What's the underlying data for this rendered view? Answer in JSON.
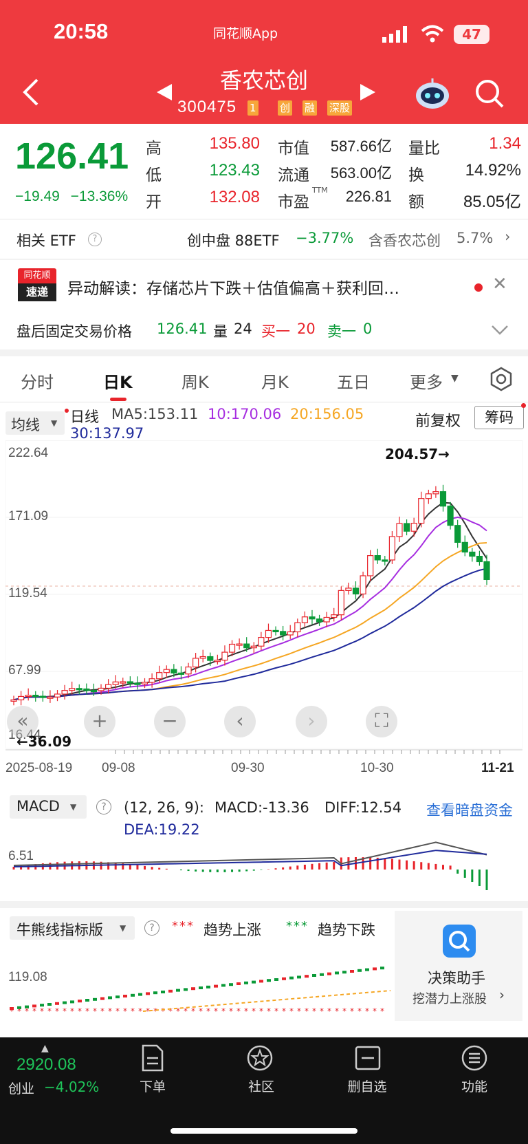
{
  "status_bar": {
    "time": "20:58",
    "app_name": "同花顺App",
    "battery": "47"
  },
  "header": {
    "stock_name": "香农芯创",
    "stock_code": "300475",
    "code_suffix": "1",
    "tags": [
      "创",
      "融",
      "深股"
    ]
  },
  "quote": {
    "last_price": "126.41",
    "change": "−19.49",
    "change_pct": "−13.36%",
    "rows": [
      {
        "l1": "高",
        "v1": "135.80",
        "l2": "市值",
        "v2": "587.66亿",
        "l3": "量比",
        "v3": "1.34"
      },
      {
        "l1": "低",
        "v1": "123.43",
        "l2": "流通",
        "v2": "563.00亿",
        "l3": "换",
        "v3": "14.92%"
      },
      {
        "l1": "开",
        "v1": "132.08",
        "l2": "市盈",
        "v2": "226.81",
        "l3": "额",
        "v3": "85.05亿"
      }
    ],
    "pe_sup": "TTM"
  },
  "etf": {
    "label": "相关 ETF",
    "name": "创中盘 88ETF",
    "pct": "−3.77%",
    "holding": "含香农芯创",
    "holding_pct": "5.7%"
  },
  "news": {
    "badge_top": "同花顺",
    "badge_bottom": "速递",
    "text": "异动解读：存储芯片下跌＋估值偏高＋获利回…"
  },
  "after_hours": {
    "label": "盘后固定交易价格",
    "price": "126.41",
    "vol_label": "量",
    "vol": "24",
    "buy_label": "买一",
    "buy": "20",
    "sell_label": "卖一",
    "sell": "0"
  },
  "tabs": [
    "分时",
    "日K",
    "周K",
    "月K",
    "五日",
    "更多"
  ],
  "kline": {
    "ma_selector": "均线",
    "line_type": "日线",
    "ma5": "MA5:153.11",
    "ma10": "10:170.06",
    "ma20": "20:156.05",
    "ma30": "30:137.97",
    "adjust": "前复权",
    "chips": "筹码",
    "y_labels": [
      "222.64",
      "171.09",
      "119.54",
      "67.99",
      "16.44"
    ],
    "high_marker": "204.57→",
    "low_marker": "←36.09",
    "x_labels": [
      "2025-08-19",
      "09-08",
      "09-30",
      "10-30",
      "11-21"
    ],
    "colors": {
      "up": "#e8242b",
      "down": "#0a9a38",
      "ma5": "#333333",
      "ma10": "#a62de0",
      "ma20": "#f5a623",
      "ma30": "#1f2a9b"
    }
  },
  "macd": {
    "selector": "MACD",
    "params": "(12, 26, 9):",
    "macd": "MACD:-13.36",
    "diff": "DIFF:12.54",
    "dea": "DEA:19.22",
    "link": "查看暗盘资金",
    "y_label": "6.51"
  },
  "bull_bear": {
    "selector": "牛熊线指标版",
    "up_label": "趋势上涨",
    "down_label": "趋势下跌",
    "y_label": "119.08",
    "assistant_title": "决策助手",
    "assistant_sub": "挖潜力上涨股"
  },
  "bottom_nav": {
    "index_value": "2920.08",
    "index_name": "创业",
    "index_pct": "−4.02%",
    "items": [
      "下单",
      "社区",
      "删自选",
      "功能"
    ]
  }
}
